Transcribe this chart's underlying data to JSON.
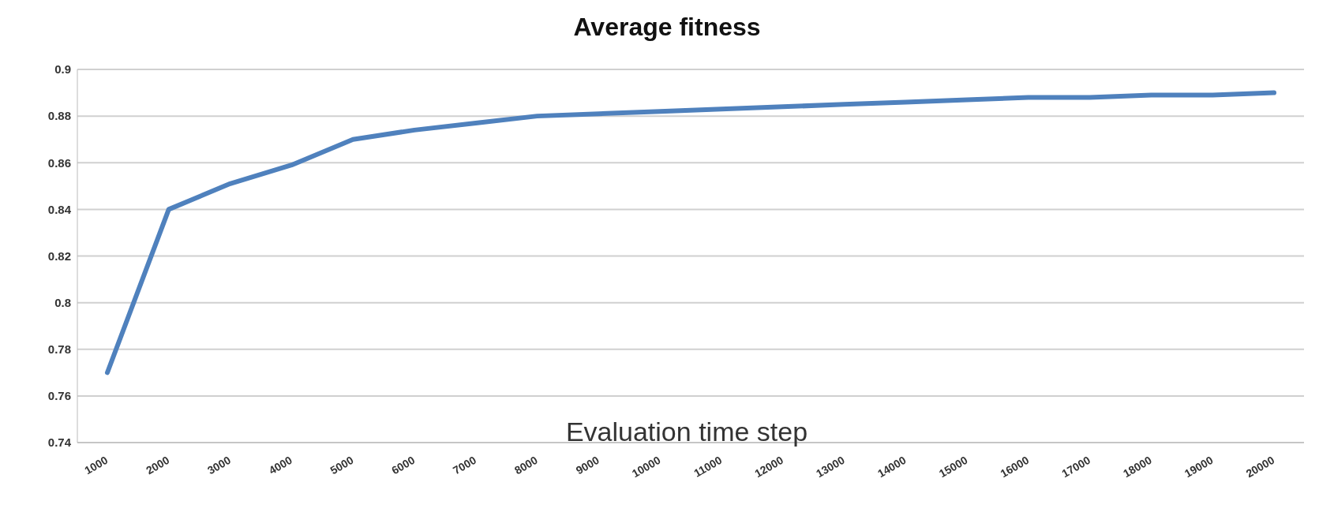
{
  "chart_data": {
    "type": "line",
    "title": "Average fitness",
    "xlabel": "Evaluation time step",
    "categories": [
      "1000",
      "2000",
      "3000",
      "4000",
      "5000",
      "6000",
      "7000",
      "8000",
      "9000",
      "10000",
      "11000",
      "12000",
      "13000",
      "14000",
      "15000",
      "16000",
      "17000",
      "18000",
      "19000",
      "20000"
    ],
    "series": [
      {
        "color": "#4f81bd",
        "values": [
          0.77,
          0.84,
          0.851,
          0.859,
          0.87,
          0.874,
          0.877,
          0.88,
          0.881,
          0.882,
          0.883,
          0.884,
          0.885,
          0.886,
          0.887,
          0.888,
          0.888,
          0.889,
          0.889,
          0.89
        ]
      }
    ],
    "ylim": [
      0.74,
      0.9
    ],
    "yticks": [
      0.74,
      0.76,
      0.78,
      0.8,
      0.82,
      0.84,
      0.86,
      0.88,
      0.9
    ],
    "grid": "y",
    "marker": "none",
    "line_style": "solid",
    "legend": false
  }
}
